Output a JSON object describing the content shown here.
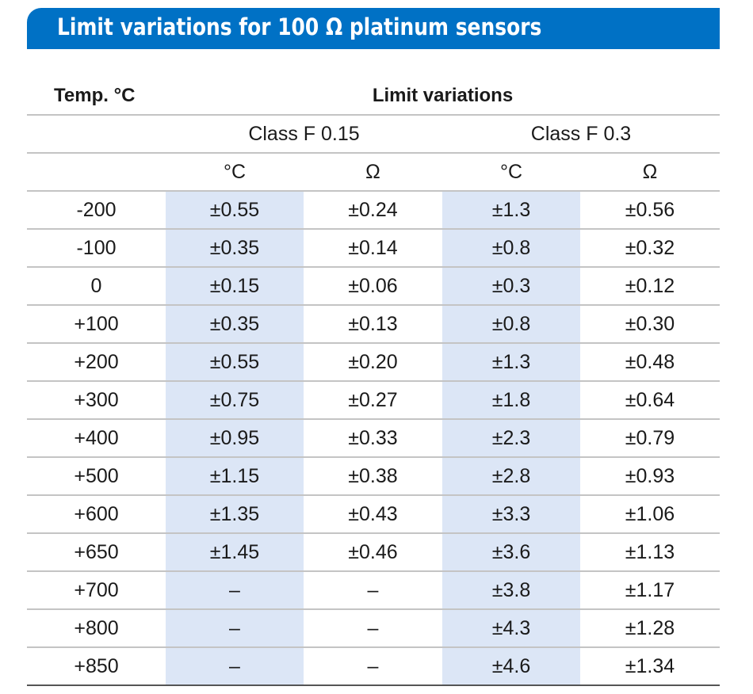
{
  "title": "Limit variations for 100 Ω platinum sensors",
  "header": {
    "temp_label": "Temp. °C",
    "limit_label": "Limit variations",
    "class_a": "Class F 0.15",
    "class_b": "Class F 0.3",
    "units": [
      "°C",
      "Ω",
      "°C",
      "Ω"
    ]
  },
  "colors": {
    "banner": "#0071c5",
    "shade": "#dce6f6",
    "rule": "#c4c4c4"
  },
  "rows": [
    {
      "temp": "-200",
      "a_c": "±0.55",
      "a_o": "±0.24",
      "b_c": "±1.3",
      "b_o": "±0.56"
    },
    {
      "temp": "-100",
      "a_c": "±0.35",
      "a_o": "±0.14",
      "b_c": "±0.8",
      "b_o": "±0.32"
    },
    {
      "temp": "0",
      "a_c": "±0.15",
      "a_o": "±0.06",
      "b_c": "±0.3",
      "b_o": "±0.12"
    },
    {
      "temp": "+100",
      "a_c": "±0.35",
      "a_o": "±0.13",
      "b_c": "±0.8",
      "b_o": "±0.30"
    },
    {
      "temp": "+200",
      "a_c": "±0.55",
      "a_o": "±0.20",
      "b_c": "±1.3",
      "b_o": "±0.48"
    },
    {
      "temp": "+300",
      "a_c": "±0.75",
      "a_o": "±0.27",
      "b_c": "±1.8",
      "b_o": "±0.64"
    },
    {
      "temp": "+400",
      "a_c": "±0.95",
      "a_o": "±0.33",
      "b_c": "±2.3",
      "b_o": "±0.79"
    },
    {
      "temp": "+500",
      "a_c": "±1.15",
      "a_o": "±0.38",
      "b_c": "±2.8",
      "b_o": "±0.93"
    },
    {
      "temp": "+600",
      "a_c": "±1.35",
      "a_o": "±0.43",
      "b_c": "±3.3",
      "b_o": "±1.06"
    },
    {
      "temp": "+650",
      "a_c": "±1.45",
      "a_o": "±0.46",
      "b_c": "±3.6",
      "b_o": "±1.13"
    },
    {
      "temp": "+700",
      "a_c": "–",
      "a_o": "–",
      "b_c": "±3.8",
      "b_o": "±1.17"
    },
    {
      "temp": "+800",
      "a_c": "–",
      "a_o": "–",
      "b_c": "±4.3",
      "b_o": "±1.28"
    },
    {
      "temp": "+850",
      "a_c": "–",
      "a_o": "–",
      "b_c": "±4.6",
      "b_o": "±1.34"
    }
  ]
}
